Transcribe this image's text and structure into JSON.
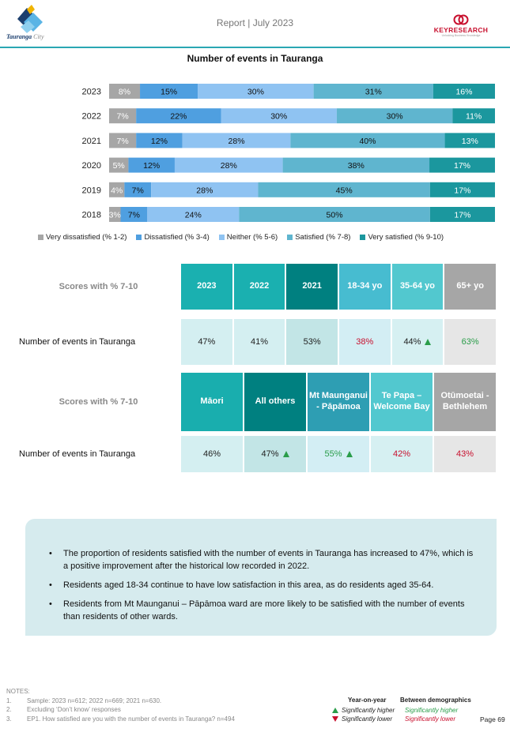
{
  "header": {
    "report_title": "Report | July 2023",
    "city_logo_text": "Tauranga",
    "city_logo_suffix": "City",
    "keyresearch_name": "KEYRESEARCH",
    "keyresearch_tagline": "Unlocking Business Knowledge",
    "accent_color": "#2aa7b3"
  },
  "chart_data": {
    "type": "bar",
    "orientation": "horizontal-stacked-100",
    "title": "Number of events in Tauranga",
    "categories": [
      "2023",
      "2022",
      "2021",
      "2020",
      "2019",
      "2018"
    ],
    "series": [
      {
        "name": "Very dissatisfied (% 1-2)",
        "color": "#a6a6a6",
        "values": [
          8,
          7,
          7,
          5,
          4,
          3
        ]
      },
      {
        "name": "Dissatisfied (% 3-4)",
        "color": "#4f9fe0",
        "values": [
          15,
          22,
          12,
          12,
          7,
          7
        ]
      },
      {
        "name": "Neither (% 5-6)",
        "color": "#8fc3f2",
        "values": [
          30,
          30,
          28,
          28,
          28,
          24
        ]
      },
      {
        "name": "Satisfied (% 7-8)",
        "color": "#5fb5cf",
        "values": [
          31,
          30,
          40,
          38,
          45,
          50
        ]
      },
      {
        "name": "Very satisfied (% 9-10)",
        "color": "#1b979e",
        "values": [
          16,
          11,
          13,
          17,
          17,
          17
        ]
      }
    ],
    "value_labels": [
      [
        "8%",
        "15%",
        "30%",
        "31%",
        "16%"
      ],
      [
        "7%",
        "22%",
        "30%",
        "30%",
        "11%"
      ],
      [
        "7%",
        "12%",
        "28%",
        "40%",
        "13%"
      ],
      [
        "5%",
        "12%",
        "28%",
        "38%",
        "17%"
      ],
      [
        "4%",
        "7%",
        "28%",
        "45%",
        "17%"
      ],
      [
        "3%",
        "7%",
        "24%",
        "50%",
        "17%"
      ]
    ],
    "label_colors": [
      "#ffffff",
      "#111111",
      "#111111",
      "#111111",
      "#ffffff"
    ],
    "xlim": [
      0,
      100
    ],
    "legend_position": "bottom",
    "grid": false
  },
  "table1": {
    "row_header": "Scores with % 7-10",
    "columns": [
      {
        "label": "2023",
        "color": "#1ab0b0"
      },
      {
        "label": "2022",
        "color": "#1ab0b0"
      },
      {
        "label": "2021",
        "color": "#008080"
      },
      {
        "label": "18-34 yo",
        "color": "#47bcd0"
      },
      {
        "label": "35-64 yo",
        "color": "#52c8cf"
      },
      {
        "label": "65+ yo",
        "color": "#a6a6a6"
      }
    ],
    "row_label": "Number of events in Tauranga",
    "values": [
      "47%",
      "41%",
      "53%",
      "38%",
      "44%",
      "63%"
    ],
    "value_styles": [
      "plain",
      "plain",
      "plain",
      "red",
      "up",
      "green"
    ],
    "cell_bgs": [
      "#d4eff1",
      "#d4eff1",
      "#c2e5e6",
      "#d3eef4",
      "#d6f0f2",
      "#e6e6e6"
    ]
  },
  "table2": {
    "row_header": "Scores with % 7-10",
    "columns": [
      {
        "label": "Māori",
        "color": "#19aeae"
      },
      {
        "label": "All others",
        "color": "#008080"
      },
      {
        "label": "Mt Maunganui - Pāpāmoa",
        "color": "#2e9eb3"
      },
      {
        "label": "Te Papa – Welcome Bay",
        "color": "#52c8cf"
      },
      {
        "label": "Otūmoetai - Bethlehem",
        "color": "#a6a6a6"
      }
    ],
    "row_label": "Number of events in Tauranga",
    "values": [
      "46%",
      "47%",
      "55%",
      "42%",
      "43%"
    ],
    "value_styles": [
      "plain",
      "up-plain",
      "up-green",
      "red",
      "red"
    ],
    "cell_bgs": [
      "#d4eff1",
      "#c2e5e6",
      "#d3eef4",
      "#d6f0f2",
      "#e6e6e6"
    ]
  },
  "summary": {
    "bullets": [
      "The proportion of residents satisfied with the number of events in Tauranga has increased to 47%, which is a positive improvement after the historical low recorded in 2022.",
      "Residents aged 18-34 continue to have low satisfaction in this area, as do residents aged 35-64.",
      "Residents from Mt Maunganui – Pāpāmoa ward are more likely to be satisfied with the number of events than residents of other wards."
    ]
  },
  "notes": {
    "title": "NOTES:",
    "items": [
      {
        "num": "1.",
        "text": "Sample: 2023 n=612; 2022 n=669; 2021 n=630."
      },
      {
        "num": "2.",
        "text": "Excluding ‘Don’t know’ responses"
      },
      {
        "num": "3.",
        "text": "EP1. How satisfied are you with the number of events in Tauranga? n=494"
      }
    ]
  },
  "key": {
    "year_on_year": "Year-on-year",
    "between_demographics": "Between demographics",
    "higher": "Significantly higher",
    "lower": "Significantly lower"
  },
  "page": "Page 69"
}
